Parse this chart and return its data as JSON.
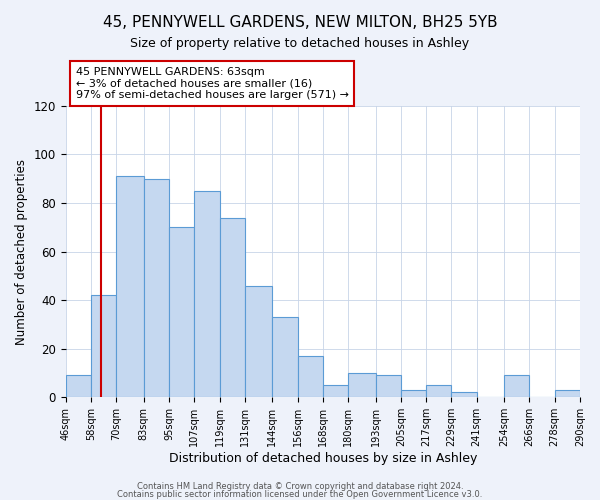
{
  "title": "45, PENNYWELL GARDENS, NEW MILTON, BH25 5YB",
  "subtitle": "Size of property relative to detached houses in Ashley",
  "xlabel": "Distribution of detached houses by size in Ashley",
  "ylabel": "Number of detached properties",
  "bin_labels": [
    "46sqm",
    "58sqm",
    "70sqm",
    "83sqm",
    "95sqm",
    "107sqm",
    "119sqm",
    "131sqm",
    "144sqm",
    "156sqm",
    "168sqm",
    "180sqm",
    "193sqm",
    "205sqm",
    "217sqm",
    "229sqm",
    "241sqm",
    "254sqm",
    "266sqm",
    "278sqm",
    "290sqm"
  ],
  "bin_edges": [
    46,
    58,
    70,
    83,
    95,
    107,
    119,
    131,
    144,
    156,
    168,
    180,
    193,
    205,
    217,
    229,
    241,
    254,
    266,
    278,
    290
  ],
  "bar_values": [
    9,
    42,
    91,
    90,
    70,
    85,
    74,
    46,
    33,
    17,
    5,
    10,
    9,
    3,
    5,
    2,
    0,
    9,
    0,
    3
  ],
  "bar_color": "#c5d8f0",
  "bar_edge_color": "#5b9bd5",
  "vline_x": 63,
  "vline_color": "#cc0000",
  "annotation_text": "45 PENNYWELL GARDENS: 63sqm\n← 3% of detached houses are smaller (16)\n97% of semi-detached houses are larger (571) →",
  "annotation_box_edge_color": "#cc0000",
  "ylim": [
    0,
    120
  ],
  "yticks": [
    0,
    20,
    40,
    60,
    80,
    100,
    120
  ],
  "footer1": "Contains HM Land Registry data © Crown copyright and database right 2024.",
  "footer2": "Contains public sector information licensed under the Open Government Licence v3.0.",
  "background_color": "#eef2fa",
  "axes_background": "#ffffff",
  "grid_color": "#c8d4e8"
}
